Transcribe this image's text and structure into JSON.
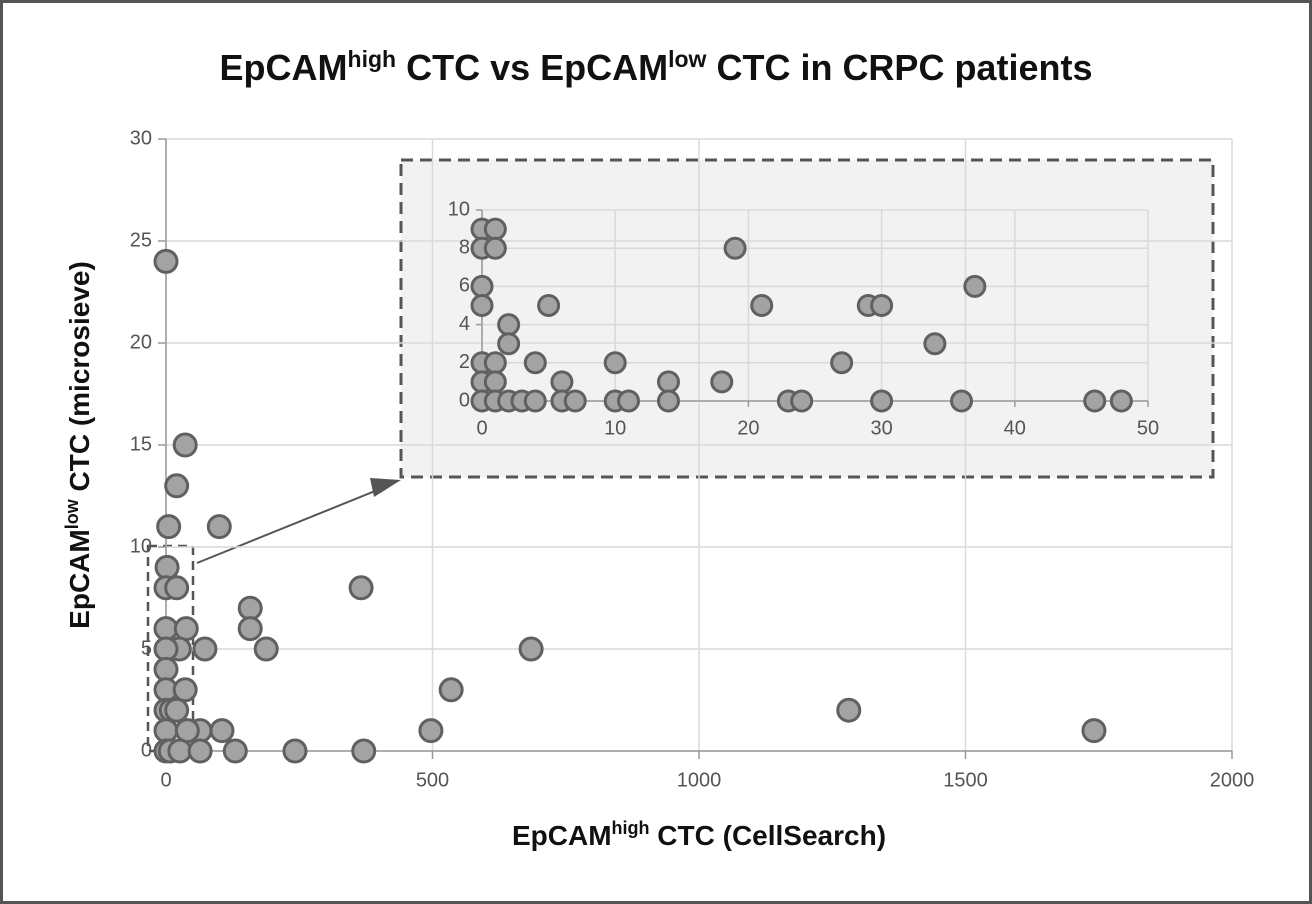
{
  "chart_data": [
    {
      "type": "scatter",
      "title": [
        "EpCAM",
        "high",
        " CTC vs EpCAM",
        "low",
        " CTC in CRPC patients"
      ],
      "xlabel": [
        "EpCAM",
        "high",
        " CTC (CellSearch)"
      ],
      "ylabel": [
        "EpCAM",
        "low",
        " CTC (microsieve)"
      ],
      "x": [
        0,
        36,
        20,
        5,
        100,
        2,
        0,
        20,
        366,
        0,
        38,
        158,
        158,
        73,
        188,
        685,
        25,
        0,
        0,
        0,
        36,
        535,
        0,
        10,
        20,
        1281,
        0,
        497,
        1741,
        64,
        105,
        40,
        0,
        8,
        26,
        64,
        130,
        242,
        371
      ],
      "values": [
        24,
        15,
        13,
        11,
        11,
        9,
        8,
        8,
        8,
        6,
        6,
        7,
        6,
        5,
        5,
        5,
        5,
        5,
        4,
        3,
        3,
        3,
        2,
        2,
        2,
        2,
        1,
        1,
        1,
        1,
        1,
        1,
        0,
        0,
        0,
        0,
        0,
        0,
        0
      ],
      "color": "#a3a3a3",
      "xlim": [
        0,
        2000
      ],
      "xticks": [
        0,
        500,
        1000,
        1500,
        2000
      ],
      "ylim": [
        0,
        30
      ],
      "yticks": [
        0,
        5,
        10,
        15,
        20,
        25,
        30
      ],
      "grid": true
    },
    {
      "type": "scatter",
      "x": [
        0,
        1,
        0,
        1,
        19,
        0,
        37,
        0,
        5,
        21,
        29,
        30,
        2,
        2,
        34,
        0,
        1,
        4,
        10,
        27,
        0,
        1,
        6,
        14,
        18,
        0,
        1,
        2,
        3,
        4,
        6,
        7,
        10,
        11,
        14,
        23,
        24,
        30,
        36,
        46,
        48
      ],
      "values": [
        9,
        9,
        8,
        8,
        8,
        6,
        6,
        5,
        5,
        5,
        5,
        5,
        4,
        3,
        3,
        2,
        2,
        2,
        2,
        2,
        1,
        1,
        1,
        1,
        1,
        0,
        0,
        0,
        0,
        0,
        0,
        0,
        0,
        0,
        0,
        0,
        0,
        0,
        0,
        0,
        0
      ],
      "color": "#a3a3a3",
      "xlim": [
        0,
        50
      ],
      "xticks": [
        0,
        10,
        20,
        30,
        40,
        50
      ],
      "ylim": [
        0,
        10
      ],
      "yticks": [
        0,
        2,
        4,
        6,
        8,
        10
      ],
      "grid": true
    }
  ]
}
